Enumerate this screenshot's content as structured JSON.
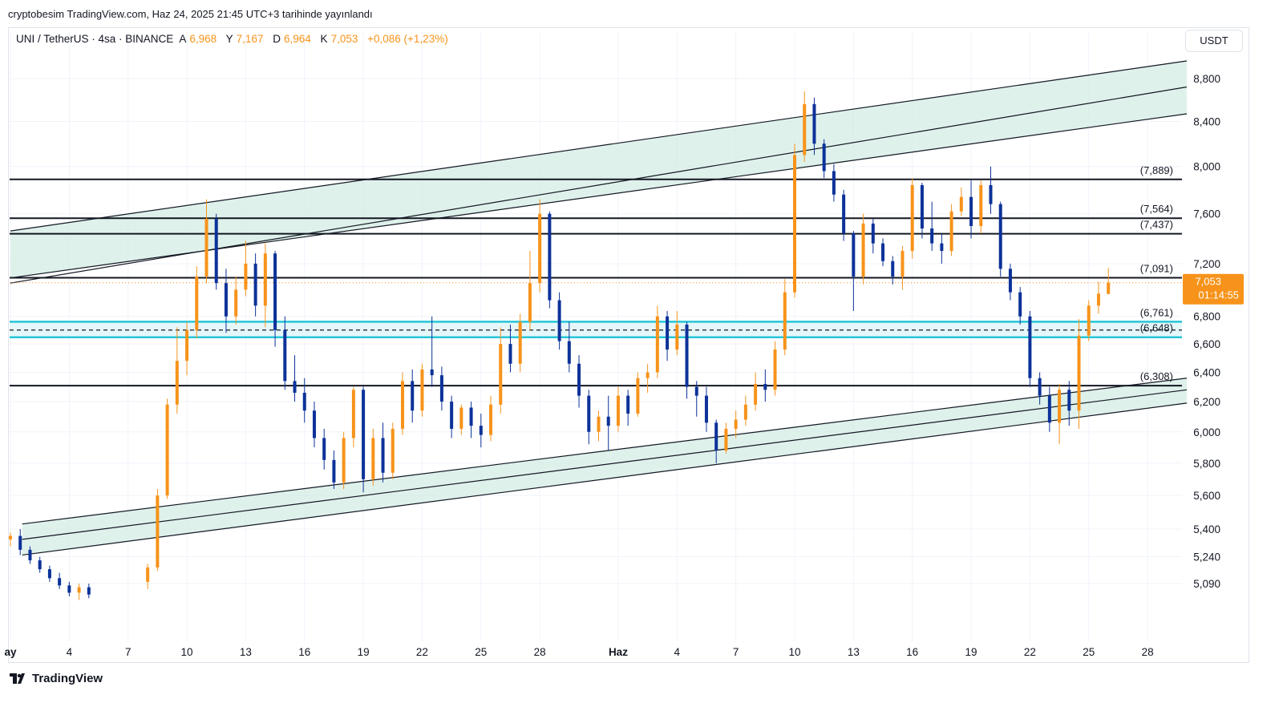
{
  "caption": "cryptobesim TradingView.com, Haz 24, 2025 21:45 UTC+3 tarihinde yayınlandı",
  "legend": {
    "symbol": "UNI / TetherUS · 4sa · BINANCE",
    "a_label": "A",
    "a_value": "6,968",
    "y_label": "Y",
    "y_value": "7,167",
    "d_label": "D",
    "d_value": "6,964",
    "k_label": "K",
    "k_value": "7,053",
    "change": "+0,086 (+1,23%)"
  },
  "currency": "USDT",
  "price_tag": {
    "price": "7,053",
    "countdown": "01:14:55",
    "color": "#f7931a"
  },
  "brand": "TradingView",
  "colors": {
    "up": "#f7931a",
    "down": "#0c3299",
    "channel_fill": "#d4ece4",
    "cyan_band": "#26c6da"
  },
  "chart_data": {
    "type": "candlestick",
    "y_axis_ticks": [
      "8,800",
      "8,400",
      "8,000",
      "7,600",
      "7,200",
      "6,800",
      "6,600",
      "6,400",
      "6,200",
      "6,000",
      "5,800",
      "5,600",
      "5,400",
      "5,240",
      "5,090"
    ],
    "y_axis_tick_values": [
      8.8,
      8.4,
      8.0,
      7.6,
      7.2,
      6.8,
      6.6,
      6.4,
      6.2,
      6.0,
      5.8,
      5.6,
      5.4,
      5.24,
      5.09
    ],
    "x_axis_ticks": [
      "ay",
      "4",
      "7",
      "10",
      "13",
      "16",
      "19",
      "22",
      "25",
      "28",
      "Haz",
      "4",
      "7",
      "10",
      "13",
      "16",
      "19",
      "22",
      "25",
      "28"
    ],
    "x_axis_tick_days": [
      1,
      4,
      7,
      10,
      13,
      16,
      19,
      22,
      25,
      28,
      32,
      35,
      38,
      41,
      44,
      47,
      50,
      53,
      56,
      59
    ],
    "x_axis_bold_ticks": [
      "ay",
      "Haz"
    ],
    "ylim": [
      5.0,
      9.05
    ],
    "scale": "log",
    "levels": [
      {
        "label": "(7,889)",
        "value": 7.889
      },
      {
        "label": "(7,564)",
        "value": 7.564
      },
      {
        "label": "(7,437)",
        "value": 7.437
      },
      {
        "label": "(7,091)",
        "value": 7.091
      },
      {
        "label": "(6,761)",
        "value": 6.761
      },
      {
        "label": "(6,648)",
        "value": 6.648
      },
      {
        "label": "(6,308)",
        "value": 6.308
      }
    ],
    "current_price": 7.053,
    "upper_channel": {
      "x_start": 1,
      "x_end": 61,
      "upper_line": [
        7.46,
        8.97
      ],
      "middle_line": [
        7.05,
        8.72
      ],
      "lower_line": [
        7.09,
        8.47
      ]
    },
    "lower_channel": {
      "x_start": 1.6,
      "x_end": 61,
      "upper_line": [
        5.43,
        6.36
      ],
      "middle_line": [
        5.34,
        6.28
      ],
      "lower_line": [
        5.25,
        6.19
      ]
    },
    "series": [
      {
        "values": [
          [
            1.0,
            5.34,
            5.38,
            5.3,
            5.36
          ],
          [
            1.5,
            5.36,
            5.4,
            5.25,
            5.28
          ],
          [
            2.0,
            5.28,
            5.3,
            5.2,
            5.22
          ],
          [
            2.5,
            5.22,
            5.24,
            5.15,
            5.17
          ],
          [
            3.0,
            5.17,
            5.19,
            5.1,
            5.12
          ],
          [
            3.5,
            5.12,
            5.15,
            5.06,
            5.08
          ],
          [
            4.0,
            5.08,
            5.1,
            5.02,
            5.04
          ],
          [
            4.5,
            5.04,
            5.09,
            5.0,
            5.07
          ],
          [
            5.0,
            5.07,
            5.09,
            5.01,
            5.03
          ],
          [
            8.0,
            5.1,
            5.2,
            5.06,
            5.18
          ],
          [
            8.5,
            5.18,
            5.64,
            5.16,
            5.6
          ],
          [
            9.0,
            5.6,
            6.22,
            5.58,
            6.18
          ],
          [
            9.5,
            6.18,
            6.72,
            6.12,
            6.48
          ],
          [
            10.0,
            6.48,
            6.76,
            6.38,
            6.7
          ],
          [
            10.5,
            6.7,
            7.18,
            6.64,
            7.1
          ],
          [
            11.0,
            7.1,
            7.72,
            7.05,
            7.56
          ],
          [
            11.5,
            7.56,
            7.6,
            7.0,
            7.05
          ],
          [
            12.0,
            7.05,
            7.16,
            6.68,
            6.8
          ],
          [
            12.5,
            6.8,
            7.1,
            6.74,
            7.0
          ],
          [
            13.0,
            7.0,
            7.38,
            6.95,
            7.2
          ],
          [
            13.5,
            7.2,
            7.28,
            6.8,
            6.88
          ],
          [
            14.0,
            6.88,
            7.36,
            6.72,
            7.28
          ],
          [
            14.5,
            7.28,
            7.3,
            6.58,
            6.7
          ],
          [
            15.0,
            6.7,
            6.8,
            6.28,
            6.34
          ],
          [
            15.5,
            6.34,
            6.52,
            6.2,
            6.26
          ],
          [
            16.0,
            6.26,
            6.36,
            6.06,
            6.14
          ],
          [
            16.5,
            6.14,
            6.2,
            5.9,
            5.96
          ],
          [
            17.0,
            5.96,
            6.02,
            5.76,
            5.82
          ],
          [
            17.5,
            5.82,
            5.88,
            5.64,
            5.68
          ],
          [
            18.0,
            5.68,
            6.0,
            5.64,
            5.96
          ],
          [
            18.5,
            5.96,
            6.3,
            5.9,
            6.28
          ],
          [
            19.0,
            6.28,
            6.3,
            5.62,
            5.7
          ],
          [
            19.5,
            5.7,
            6.02,
            5.66,
            5.96
          ],
          [
            20.0,
            5.96,
            6.06,
            5.68,
            5.74
          ],
          [
            20.5,
            5.74,
            6.06,
            5.7,
            6.02
          ],
          [
            21.0,
            6.02,
            6.4,
            5.98,
            6.34
          ],
          [
            21.5,
            6.34,
            6.42,
            6.06,
            6.14
          ],
          [
            22.0,
            6.14,
            6.46,
            6.1,
            6.42
          ],
          [
            22.5,
            6.42,
            6.8,
            6.3,
            6.38
          ],
          [
            23.0,
            6.38,
            6.44,
            6.14,
            6.2
          ],
          [
            23.5,
            6.2,
            6.24,
            5.96,
            6.02
          ],
          [
            24.0,
            6.02,
            6.18,
            5.98,
            6.16
          ],
          [
            24.5,
            6.16,
            6.2,
            5.96,
            6.04
          ],
          [
            25.0,
            6.04,
            6.12,
            5.9,
            5.98
          ],
          [
            25.5,
            5.98,
            6.24,
            5.94,
            6.18
          ],
          [
            26.0,
            6.18,
            6.72,
            6.12,
            6.6
          ],
          [
            26.5,
            6.6,
            6.74,
            6.4,
            6.46
          ],
          [
            27.0,
            6.46,
            6.82,
            6.4,
            6.76
          ],
          [
            27.5,
            6.76,
            7.3,
            6.7,
            7.05
          ],
          [
            28.0,
            7.05,
            7.72,
            6.98,
            7.6
          ],
          [
            28.5,
            7.6,
            7.62,
            6.86,
            6.92
          ],
          [
            29.0,
            6.92,
            6.98,
            6.56,
            6.62
          ],
          [
            29.5,
            6.62,
            6.76,
            6.4,
            6.46
          ],
          [
            30.0,
            6.46,
            6.52,
            6.16,
            6.24
          ],
          [
            30.5,
            6.24,
            6.28,
            5.92,
            6.0
          ],
          [
            31.0,
            6.0,
            6.14,
            5.94,
            6.1
          ],
          [
            31.5,
            6.1,
            6.24,
            5.88,
            6.04
          ],
          [
            32.0,
            6.04,
            6.3,
            6.0,
            6.24
          ],
          [
            32.5,
            6.24,
            6.28,
            6.04,
            6.12
          ],
          [
            33.0,
            6.12,
            6.4,
            6.1,
            6.36
          ],
          [
            33.5,
            6.36,
            6.46,
            6.26,
            6.4
          ],
          [
            34.0,
            6.4,
            6.88,
            6.36,
            6.8
          ],
          [
            34.5,
            6.8,
            6.84,
            6.48,
            6.56
          ],
          [
            35.0,
            6.56,
            6.84,
            6.52,
            6.74
          ],
          [
            35.5,
            6.74,
            6.76,
            6.22,
            6.3
          ],
          [
            36.0,
            6.3,
            6.34,
            6.1,
            6.24
          ],
          [
            36.5,
            6.24,
            6.3,
            6.0,
            6.06
          ],
          [
            37.0,
            6.06,
            6.08,
            5.8,
            5.88
          ],
          [
            37.5,
            5.88,
            6.06,
            5.86,
            6.02
          ],
          [
            38.0,
            6.02,
            6.14,
            5.96,
            6.08
          ],
          [
            38.5,
            6.08,
            6.24,
            6.04,
            6.18
          ],
          [
            39.0,
            6.18,
            6.4,
            6.14,
            6.32
          ],
          [
            39.5,
            6.32,
            6.42,
            6.2,
            6.28
          ],
          [
            40.0,
            6.28,
            6.62,
            6.24,
            6.56
          ],
          [
            40.5,
            6.56,
            7.08,
            6.52,
            6.98
          ],
          [
            41.0,
            6.98,
            8.2,
            6.94,
            8.1
          ],
          [
            41.5,
            8.1,
            8.68,
            8.04,
            8.56
          ],
          [
            42.0,
            8.56,
            8.62,
            8.1,
            8.2
          ],
          [
            42.5,
            8.2,
            8.24,
            7.9,
            7.96
          ],
          [
            43.0,
            7.96,
            8.02,
            7.7,
            7.76
          ],
          [
            43.5,
            7.76,
            7.8,
            7.38,
            7.44
          ],
          [
            44.0,
            7.44,
            7.46,
            6.84,
            7.1
          ],
          [
            44.5,
            7.1,
            7.6,
            7.04,
            7.52
          ],
          [
            45.0,
            7.52,
            7.56,
            7.28,
            7.36
          ],
          [
            45.5,
            7.36,
            7.4,
            7.18,
            7.22
          ],
          [
            46.0,
            7.22,
            7.26,
            7.04,
            7.1
          ],
          [
            46.5,
            7.1,
            7.34,
            7.0,
            7.3
          ],
          [
            47.0,
            7.3,
            7.9,
            7.24,
            7.84
          ],
          [
            47.5,
            7.84,
            7.86,
            7.4,
            7.48
          ],
          [
            48.0,
            7.48,
            7.7,
            7.3,
            7.36
          ],
          [
            48.5,
            7.36,
            7.44,
            7.2,
            7.3
          ],
          [
            49.0,
            7.3,
            7.68,
            7.26,
            7.62
          ],
          [
            49.5,
            7.62,
            7.82,
            7.58,
            7.74
          ],
          [
            50.0,
            7.74,
            7.88,
            7.4,
            7.5
          ],
          [
            50.5,
            7.5,
            7.88,
            7.44,
            7.84
          ],
          [
            51.0,
            7.84,
            8.0,
            7.6,
            7.68
          ],
          [
            51.5,
            7.68,
            7.7,
            7.1,
            7.16
          ],
          [
            52.0,
            7.16,
            7.2,
            6.92,
            6.98
          ],
          [
            52.5,
            6.98,
            7.02,
            6.74,
            6.8
          ],
          [
            53.0,
            6.8,
            6.84,
            6.3,
            6.36
          ],
          [
            53.5,
            6.36,
            6.4,
            6.18,
            6.24
          ],
          [
            54.0,
            6.24,
            6.3,
            6.0,
            6.06
          ],
          [
            54.5,
            6.06,
            6.32,
            5.92,
            6.28
          ],
          [
            55.0,
            6.28,
            6.34,
            6.04,
            6.14
          ],
          [
            55.5,
            6.14,
            6.78,
            6.02,
            6.66
          ],
          [
            56.0,
            6.66,
            6.92,
            6.62,
            6.88
          ],
          [
            56.5,
            6.88,
            7.06,
            6.82,
            6.97
          ],
          [
            57.0,
            6.968,
            7.167,
            6.964,
            7.053
          ]
        ]
      }
    ]
  }
}
